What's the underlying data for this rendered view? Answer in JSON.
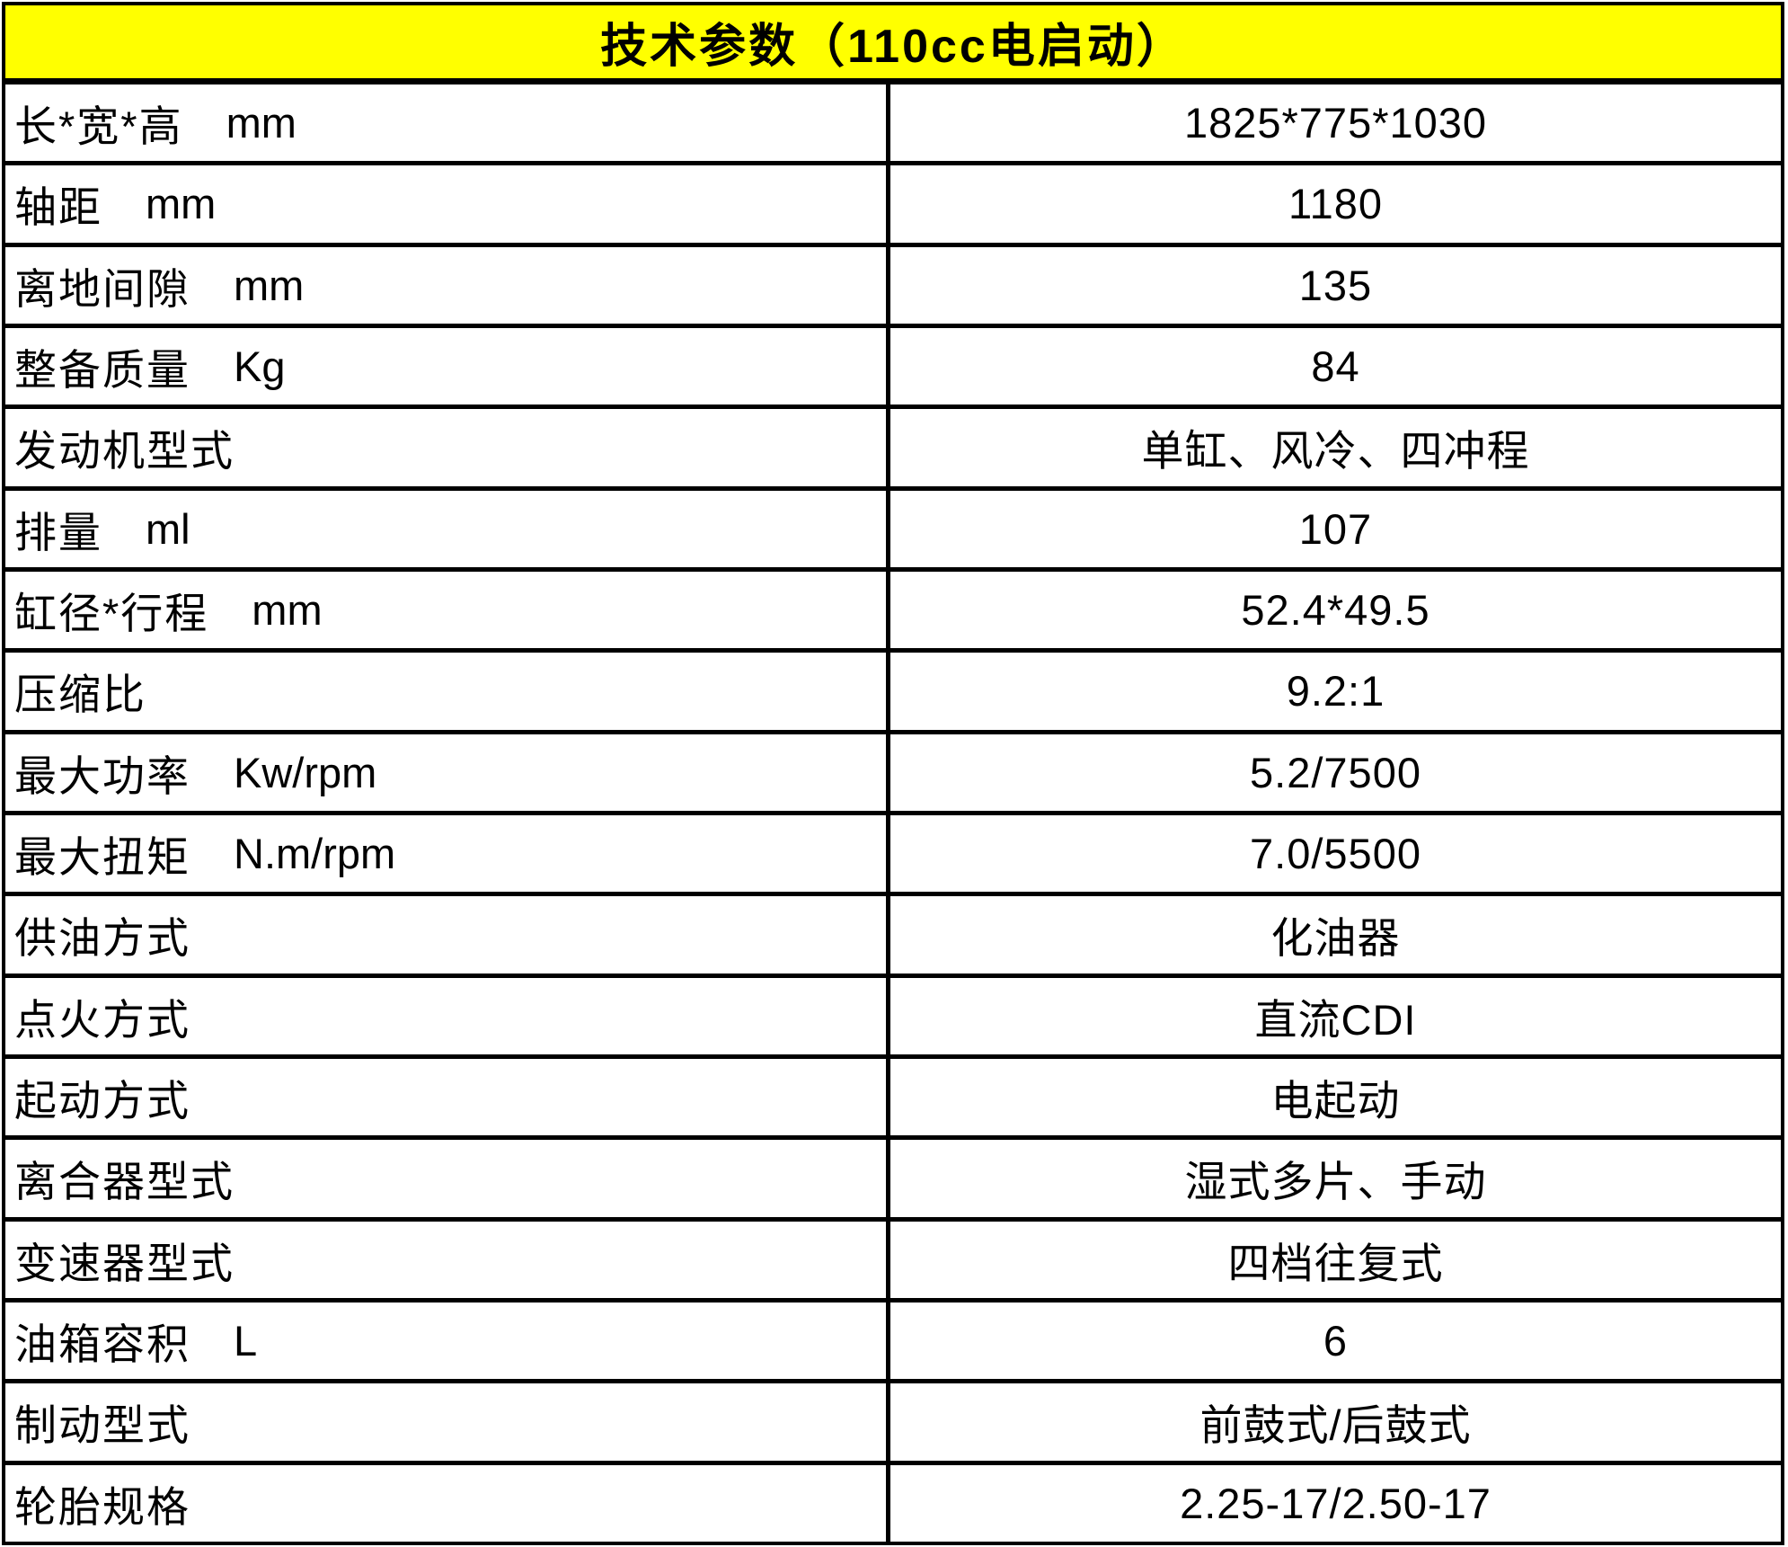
{
  "header": {
    "title": "技术参数（110cc电启动）"
  },
  "colors": {
    "header_background": "#FFFF00",
    "border": "#000000",
    "text": "#000000",
    "row_background": "#FFFFFF"
  },
  "table": {
    "rows": [
      {
        "label": "长*宽*高",
        "unit": "mm",
        "value": "1825*775*1030"
      },
      {
        "label": "轴距",
        "unit": "mm",
        "value": "1180"
      },
      {
        "label": "离地间隙",
        "unit": "mm",
        "value": "135"
      },
      {
        "label": "整备质量",
        "unit": "Kg",
        "value": "84"
      },
      {
        "label": "发动机型式",
        "unit": "",
        "value": "单缸、风冷、四冲程"
      },
      {
        "label": "排量",
        "unit": "ml",
        "value": "107"
      },
      {
        "label": "缸径*行程",
        "unit": "mm",
        "value": "52.4*49.5"
      },
      {
        "label": "压缩比",
        "unit": "",
        "value": "9.2:1"
      },
      {
        "label": "最大功率",
        "unit": "Kw/rpm",
        "value": "5.2/7500"
      },
      {
        "label": "最大扭矩",
        "unit": "N.m/rpm",
        "value": "7.0/5500"
      },
      {
        "label": "供油方式",
        "unit": "",
        "value": "化油器"
      },
      {
        "label": "点火方式",
        "unit": "",
        "value": "直流CDI"
      },
      {
        "label": "起动方式",
        "unit": "",
        "value": "电起动"
      },
      {
        "label": "离合器型式",
        "unit": "",
        "value": "湿式多片、手动"
      },
      {
        "label": "变速器型式",
        "unit": "",
        "value": "四档往复式"
      },
      {
        "label": "油箱容积",
        "unit": "L",
        "value": "6"
      },
      {
        "label": "制动型式",
        "unit": "",
        "value": "前鼓式/后鼓式"
      },
      {
        "label": "轮胎规格",
        "unit": "",
        "value": "2.25-17/2.50-17"
      }
    ]
  }
}
